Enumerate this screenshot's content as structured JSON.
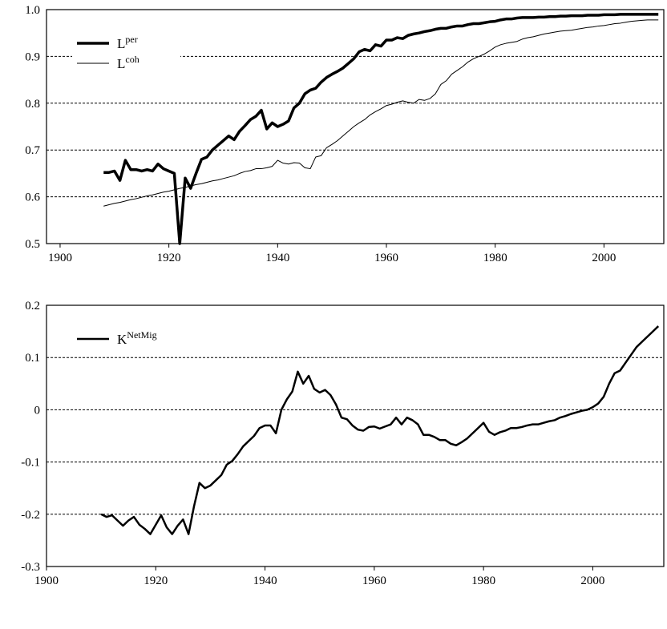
{
  "chart_data": [
    {
      "type": "line",
      "grid": true,
      "legend": "upper left",
      "xlim": [
        1897.5,
        2011
      ],
      "xticks": [
        1900,
        1920,
        1940,
        1960,
        1980,
        2000
      ],
      "ylim": [
        0.5,
        1
      ],
      "yticks": [
        0.5,
        0.6,
        0.7,
        0.8,
        0.9,
        {
          "value": 1,
          "label": "1.0"
        }
      ],
      "x": [
        1908,
        1909,
        1910,
        1911,
        1912,
        1913,
        1914,
        1915,
        1916,
        1917,
        1918,
        1919,
        1920,
        1921,
        1922,
        1923,
        1924,
        1925,
        1926,
        1927,
        1928,
        1929,
        1930,
        1931,
        1932,
        1933,
        1934,
        1935,
        1936,
        1937,
        1938,
        1939,
        1940,
        1941,
        1942,
        1943,
        1944,
        1945,
        1946,
        1947,
        1948,
        1949,
        1950,
        1951,
        1952,
        1953,
        1954,
        1955,
        1956,
        1957,
        1958,
        1959,
        1960,
        1961,
        1962,
        1963,
        1964,
        1965,
        1966,
        1967,
        1968,
        1969,
        1970,
        1971,
        1972,
        1973,
        1974,
        1975,
        1976,
        1977,
        1978,
        1979,
        1980,
        1981,
        1982,
        1983,
        1984,
        1985,
        1986,
        1987,
        1988,
        1989,
        1990,
        1991,
        1992,
        1993,
        1994,
        1995,
        1996,
        1997,
        1998,
        1999,
        2000,
        2001,
        2002,
        2003,
        2004,
        2005,
        2006,
        2007,
        2008,
        2009,
        2010
      ],
      "series": [
        {
          "name": "L",
          "superscript": "per",
          "color": "#000000",
          "linewidth": 3.5,
          "values": [
            0.652,
            0.652,
            0.655,
            0.635,
            0.678,
            0.658,
            0.658,
            0.655,
            0.658,
            0.655,
            0.67,
            0.66,
            0.655,
            0.65,
            0.5,
            0.64,
            0.618,
            0.65,
            0.68,
            0.685,
            0.7,
            0.71,
            0.72,
            0.73,
            0.722,
            0.74,
            0.752,
            0.765,
            0.772,
            0.785,
            0.745,
            0.758,
            0.75,
            0.755,
            0.762,
            0.79,
            0.8,
            0.82,
            0.828,
            0.832,
            0.845,
            0.855,
            0.862,
            0.868,
            0.875,
            0.885,
            0.895,
            0.91,
            0.915,
            0.912,
            0.925,
            0.922,
            0.935,
            0.935,
            0.94,
            0.938,
            0.945,
            0.948,
            0.95,
            0.953,
            0.955,
            0.958,
            0.96,
            0.96,
            0.963,
            0.965,
            0.965,
            0.968,
            0.97,
            0.97,
            0.972,
            0.974,
            0.975,
            0.978,
            0.98,
            0.98,
            0.982,
            0.983,
            0.983,
            0.983,
            0.984,
            0.984,
            0.985,
            0.985,
            0.986,
            0.986,
            0.987,
            0.987,
            0.987,
            0.988,
            0.988,
            0.988,
            0.989,
            0.989,
            0.989,
            0.99,
            0.99,
            0.99,
            0.99,
            0.99,
            0.99,
            0.99,
            0.99
          ]
        },
        {
          "name": "L",
          "superscript": "coh",
          "color": "#000000",
          "linewidth": 1,
          "values": [
            0.58,
            0.583,
            0.586,
            0.588,
            0.591,
            0.594,
            0.596,
            0.599,
            0.602,
            0.604,
            0.607,
            0.61,
            0.612,
            0.615,
            0.618,
            0.62,
            0.623,
            0.626,
            0.628,
            0.631,
            0.634,
            0.636,
            0.639,
            0.642,
            0.645,
            0.65,
            0.654,
            0.656,
            0.66,
            0.66,
            0.662,
            0.665,
            0.678,
            0.672,
            0.67,
            0.673,
            0.672,
            0.662,
            0.66,
            0.685,
            0.688,
            0.705,
            0.712,
            0.72,
            0.73,
            0.74,
            0.75,
            0.758,
            0.765,
            0.775,
            0.782,
            0.788,
            0.795,
            0.798,
            0.802,
            0.805,
            0.802,
            0.8,
            0.808,
            0.806,
            0.81,
            0.82,
            0.84,
            0.848,
            0.862,
            0.87,
            0.878,
            0.888,
            0.895,
            0.9,
            0.905,
            0.912,
            0.92,
            0.925,
            0.928,
            0.93,
            0.932,
            0.937,
            0.94,
            0.942,
            0.945,
            0.948,
            0.95,
            0.952,
            0.954,
            0.955,
            0.956,
            0.958,
            0.96,
            0.962,
            0.963,
            0.965,
            0.966,
            0.968,
            0.97,
            0.971,
            0.973,
            0.975,
            0.976,
            0.977,
            0.978,
            0.978,
            0.978
          ]
        }
      ]
    },
    {
      "type": "line",
      "grid": true,
      "legend": "upper left",
      "xlim": [
        1900,
        2013
      ],
      "xticks": [
        1900,
        1920,
        1940,
        1960,
        1980,
        2000
      ],
      "ylim": [
        -0.3,
        0.2
      ],
      "yticks": [
        -0.3,
        -0.2,
        -0.1,
        0,
        0.1,
        0.2
      ],
      "x": [
        1910,
        1911,
        1912,
        1913,
        1914,
        1915,
        1916,
        1917,
        1918,
        1919,
        1920,
        1921,
        1922,
        1923,
        1924,
        1925,
        1926,
        1927,
        1928,
        1929,
        1930,
        1931,
        1932,
        1933,
        1934,
        1935,
        1936,
        1937,
        1938,
        1939,
        1940,
        1941,
        1942,
        1943,
        1944,
        1945,
        1946,
        1947,
        1948,
        1949,
        1950,
        1951,
        1952,
        1953,
        1954,
        1955,
        1956,
        1957,
        1958,
        1959,
        1960,
        1961,
        1962,
        1963,
        1964,
        1965,
        1966,
        1967,
        1968,
        1969,
        1970,
        1971,
        1972,
        1973,
        1974,
        1975,
        1976,
        1977,
        1978,
        1979,
        1980,
        1981,
        1982,
        1983,
        1984,
        1985,
        1986,
        1987,
        1988,
        1989,
        1990,
        1991,
        1992,
        1993,
        1994,
        1995,
        1996,
        1997,
        1998,
        1999,
        2000,
        2001,
        2002,
        2003,
        2004,
        2005,
        2006,
        2007,
        2008,
        2009,
        2010,
        2011,
        2012
      ],
      "series": [
        {
          "name": "K",
          "superscript": "NetMig",
          "color": "#000000",
          "linewidth": 2.5,
          "values": [
            -0.2,
            -0.205,
            -0.202,
            -0.212,
            -0.222,
            -0.212,
            -0.205,
            -0.22,
            -0.228,
            -0.238,
            -0.22,
            -0.202,
            -0.225,
            -0.238,
            -0.222,
            -0.21,
            -0.238,
            -0.185,
            -0.14,
            -0.15,
            -0.145,
            -0.135,
            -0.125,
            -0.105,
            -0.098,
            -0.085,
            -0.07,
            -0.06,
            -0.05,
            -0.035,
            -0.03,
            -0.03,
            -0.045,
            0,
            0.02,
            0.035,
            0.073,
            0.05,
            0.065,
            0.04,
            0.033,
            0.038,
            0.028,
            0.01,
            -0.015,
            -0.018,
            -0.03,
            -0.038,
            -0.04,
            -0.033,
            -0.032,
            -0.036,
            -0.032,
            -0.028,
            -0.015,
            -0.028,
            -0.015,
            -0.02,
            -0.028,
            -0.048,
            -0.048,
            -0.052,
            -0.058,
            -0.058,
            -0.065,
            -0.068,
            -0.062,
            -0.055,
            -0.045,
            -0.035,
            -0.025,
            -0.042,
            -0.048,
            -0.043,
            -0.04,
            -0.035,
            -0.035,
            -0.033,
            -0.03,
            -0.028,
            -0.028,
            -0.025,
            -0.022,
            -0.02,
            -0.015,
            -0.012,
            -0.008,
            -0.005,
            -0.002,
            0,
            0.005,
            0.012,
            0.025,
            0.05,
            0.07,
            0.075,
            0.09,
            0.105,
            0.12,
            0.13,
            0.14,
            0.15,
            0.16
          ]
        }
      ]
    }
  ]
}
